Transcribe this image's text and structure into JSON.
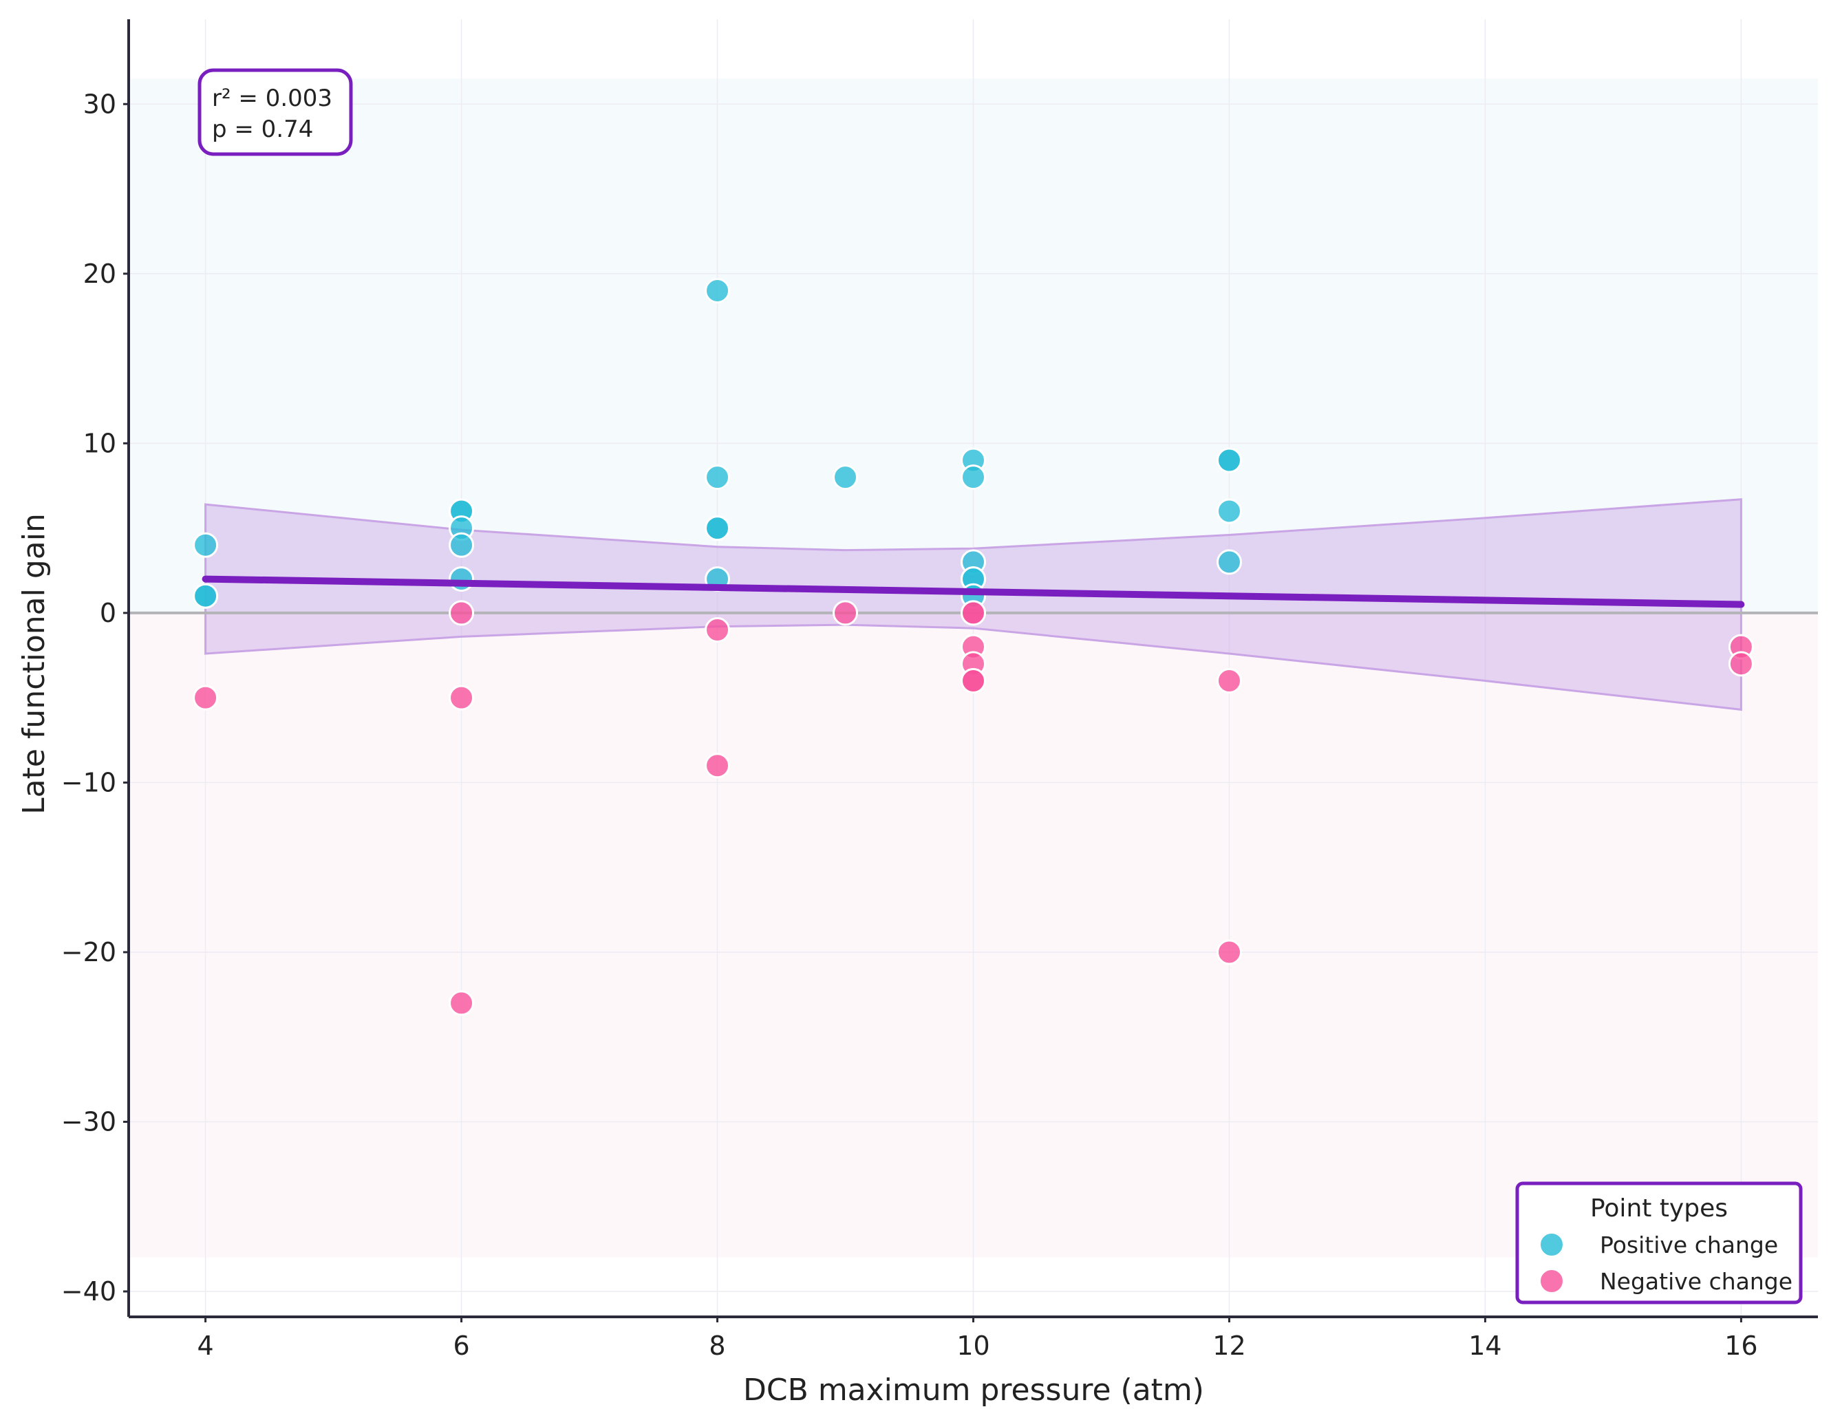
{
  "chart_data": {
    "type": "scatter",
    "title": "",
    "xlabel": "DCB maximum pressure (atm)",
    "ylabel": "Late functional gain",
    "xlim": [
      3.4,
      16.6
    ],
    "ylim": [
      -41.5,
      35
    ],
    "xticks": [
      4,
      6,
      8,
      10,
      12,
      14,
      16
    ],
    "yticks": [
      -40,
      -30,
      -20,
      -10,
      0,
      10,
      20,
      30
    ],
    "grid": true,
    "zero_line": 0,
    "background_bands": [
      {
        "name": "positive-region",
        "y": [
          0,
          31.5
        ],
        "color": "#f5fafc"
      },
      {
        "name": "negative-region",
        "y": [
          -38,
          0
        ],
        "color": "#fdf7fa"
      }
    ],
    "annotation": {
      "lines": [
        "r² = 0.003",
        "p = 0.74"
      ],
      "position": "top-left"
    },
    "legend": {
      "title": "Point types",
      "position": "bottom-right",
      "entries": [
        {
          "label": "Positive change",
          "color": "#26bcd7"
        },
        {
          "label": "Negative change",
          "color": "#f7509a"
        }
      ]
    },
    "series": [
      {
        "name": "Positive change",
        "color": "#26bcd7",
        "points": [
          [
            4,
            4
          ],
          [
            4,
            1
          ],
          [
            4,
            1
          ],
          [
            6,
            6
          ],
          [
            6,
            6
          ],
          [
            6,
            5
          ],
          [
            6,
            4
          ],
          [
            6,
            2
          ],
          [
            8,
            19
          ],
          [
            8,
            8
          ],
          [
            8,
            5
          ],
          [
            8,
            5
          ],
          [
            8,
            2
          ],
          [
            9,
            8
          ],
          [
            10,
            9
          ],
          [
            10,
            8
          ],
          [
            10,
            3
          ],
          [
            10,
            2
          ],
          [
            10,
            2
          ],
          [
            10,
            1
          ],
          [
            12,
            9
          ],
          [
            12,
            9
          ],
          [
            12,
            6
          ],
          [
            12,
            3
          ]
        ]
      },
      {
        "name": "Negative change",
        "color": "#f7509a",
        "points": [
          [
            4,
            -5
          ],
          [
            6,
            0
          ],
          [
            6,
            -5
          ],
          [
            6,
            -23
          ],
          [
            8,
            -1
          ],
          [
            8,
            -9
          ],
          [
            9,
            0
          ],
          [
            10,
            0
          ],
          [
            10,
            0
          ],
          [
            10,
            -2
          ],
          [
            10,
            -3
          ],
          [
            10,
            -4
          ],
          [
            10,
            -4
          ],
          [
            12,
            -4
          ],
          [
            12,
            -20
          ],
          [
            16,
            -2
          ],
          [
            16,
            -3
          ]
        ]
      }
    ],
    "regression": {
      "color": "#7a1fbf",
      "line": [
        [
          4,
          2.0
        ],
        [
          16,
          0.5
        ]
      ],
      "ci_color": "#c9a5e6",
      "ci_upper": [
        [
          4,
          6.4
        ],
        [
          6,
          4.9
        ],
        [
          8,
          3.9
        ],
        [
          9,
          3.7
        ],
        [
          10,
          3.8
        ],
        [
          12,
          4.6
        ],
        [
          14,
          5.6
        ],
        [
          16,
          6.7
        ]
      ],
      "ci_lower": [
        [
          4,
          -2.4
        ],
        [
          6,
          -1.4
        ],
        [
          8,
          -0.8
        ],
        [
          9,
          -0.7
        ],
        [
          10,
          -0.9
        ],
        [
          12,
          -2.4
        ],
        [
          14,
          -4.0
        ],
        [
          16,
          -5.7
        ]
      ]
    }
  }
}
